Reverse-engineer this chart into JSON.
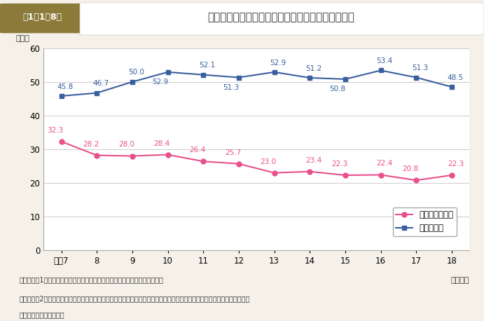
{
  "title": "地方公務員採用試験合格者に占める女性割合の推移",
  "title_label": "第1－1－8図",
  "years": [
    "平成7",
    "8",
    "9",
    "10",
    "11",
    "12",
    "13",
    "14",
    "15",
    "16",
    "17",
    "18"
  ],
  "pref_values": [
    32.3,
    28.2,
    28.0,
    28.4,
    26.4,
    25.7,
    23.0,
    23.4,
    22.3,
    22.4,
    20.8,
    22.3
  ],
  "city_values": [
    45.8,
    46.7,
    50.0,
    52.9,
    52.1,
    51.3,
    52.9,
    51.2,
    50.8,
    53.4,
    51.3,
    48.5
  ],
  "pref_label": "都道府県合格者",
  "city_label": "市区合格者",
  "pref_color": "#e8508c",
  "city_color": "#3a5fa0",
  "ylabel": "（％）",
  "xlabel_suffix": "（年度）",
  "ylim": [
    0,
    60
  ],
  "yticks": [
    0,
    10,
    20,
    30,
    40,
    50,
    60
  ],
  "bg_color": "#f5f0e8",
  "plot_bg_color": "#ffffff",
  "note1": "（備考）　1．総務省「地方公共団体の勤務条件等に関する調査」より作成。",
  "note2": "　　　　　2．女性合格者，男性合格者のほか，申込書に性別記入欄を設けていない試験があることから性別不明の合格者が",
  "note3": "　　　　　　存在する。"
}
